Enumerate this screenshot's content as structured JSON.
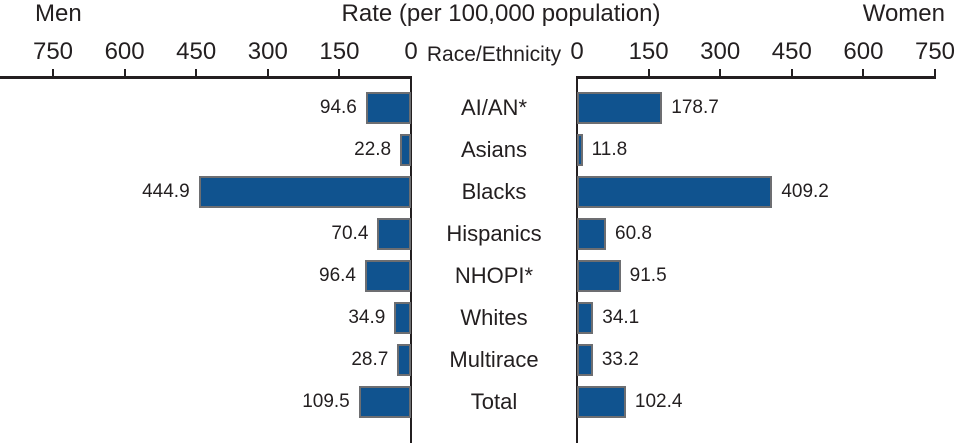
{
  "header": {
    "left_title": "Men",
    "center_title": "Rate (per 100,000 population)",
    "right_title": "Women"
  },
  "center": {
    "header": "Race/Ethnicity"
  },
  "axes": {
    "max": 750,
    "tick_interval": 150,
    "left_ticks": [
      750,
      600,
      450,
      300,
      150,
      0
    ],
    "right_ticks": [
      0,
      150,
      300,
      450,
      600,
      750
    ]
  },
  "chart_data": {
    "type": "bar",
    "subtype": "butterfly-horizontal",
    "title": "Rate (per 100,000 population)",
    "category_axis_label": "Race/Ethnicity",
    "categories": [
      "AI/AN*",
      "Asians",
      "Blacks",
      "Hispanics",
      "NHOPI*",
      "Whites",
      "Multirace",
      "Total"
    ],
    "series": [
      {
        "name": "Men",
        "side": "left",
        "values": [
          94.6,
          22.8,
          444.9,
          70.4,
          96.4,
          34.9,
          28.7,
          109.5
        ]
      },
      {
        "name": "Women",
        "side": "right",
        "values": [
          178.7,
          11.8,
          409.2,
          60.8,
          91.5,
          34.1,
          33.2,
          102.4
        ]
      }
    ],
    "value_labels_shown": true,
    "xlim": [
      0,
      750
    ],
    "grid": false,
    "legend_position": "none"
  },
  "colors": {
    "bar_fill": "#10538F",
    "bar_border": "#6D6E71",
    "axis": "#231F20",
    "text": "#231F20",
    "background": "#FFFFFF"
  }
}
